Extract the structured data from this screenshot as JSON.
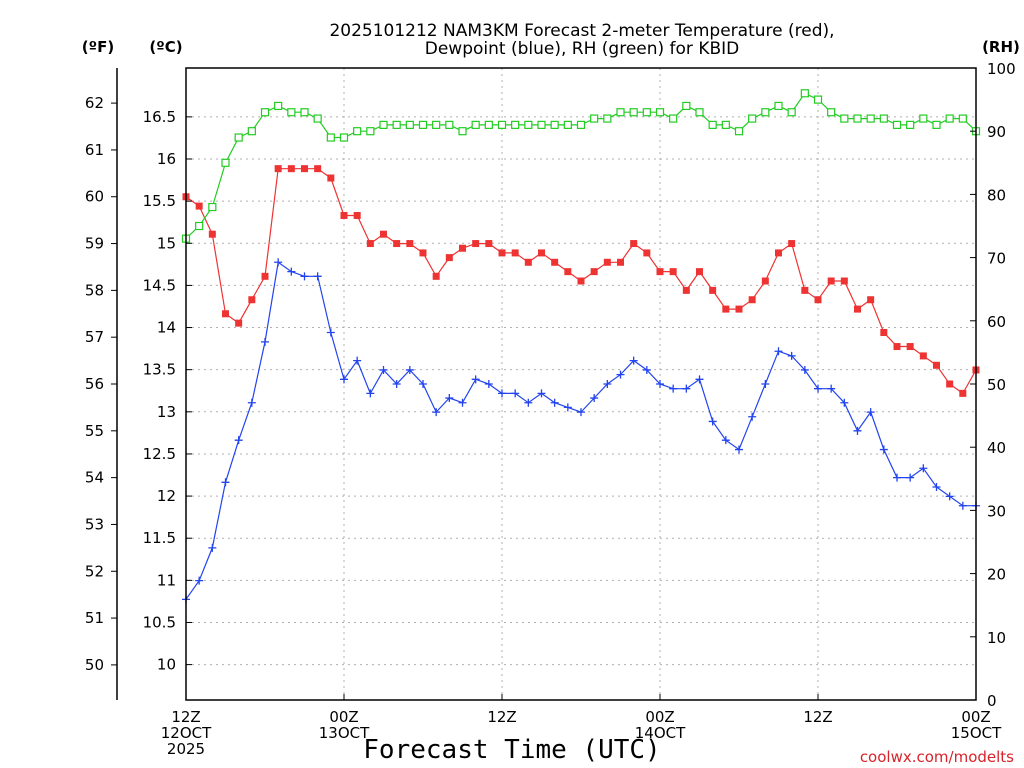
{
  "chart_data": {
    "type": "line",
    "title": [
      "2025101212 NAM3KM Forecast 2-meter Temperature (red),",
      "Dewpoint (blue), RH (green) for KBID"
    ],
    "xlabel": "Forecast Time (UTC)",
    "credit": "coolwx.com/modelts",
    "y_left_f": {
      "unit": "(ºF)",
      "lim": [
        49.25,
        62.75
      ],
      "ticks": [
        50,
        51,
        52,
        53,
        54,
        55,
        56,
        57,
        58,
        59,
        60,
        61,
        62
      ]
    },
    "y_left_c": {
      "unit": "(ºC)",
      "lim": [
        9.58,
        17.08
      ],
      "ticks": [
        "10",
        "10.5",
        "11",
        "11.5",
        "12",
        "12.5",
        "13",
        "13.5",
        "14",
        "14.5",
        "15",
        "15.5",
        "16",
        "16.5"
      ]
    },
    "y_right": {
      "unit": "(RH)",
      "lim": [
        0,
        100
      ],
      "ticks": [
        0,
        10,
        20,
        30,
        40,
        50,
        60,
        70,
        80,
        90,
        100
      ]
    },
    "x_range_hours": [
      0,
      60
    ],
    "x_ticks": [
      {
        "hour": 0,
        "lines": [
          "12Z",
          "12OCT",
          "2025"
        ]
      },
      {
        "hour": 12,
        "lines": [
          "00Z",
          "13OCT"
        ]
      },
      {
        "hour": 24,
        "lines": [
          "12Z"
        ]
      },
      {
        "hour": 36,
        "lines": [
          "00Z",
          "14OCT"
        ]
      },
      {
        "hour": 48,
        "lines": [
          "12Z"
        ]
      },
      {
        "hour": 60,
        "lines": [
          "00Z",
          "15OCT"
        ]
      }
    ],
    "series": [
      {
        "name": "Temperature (F)",
        "axis": "f",
        "color": "#ee3333",
        "marker": "filled-square",
        "x": [
          0,
          1,
          2,
          3,
          4,
          5,
          6,
          7,
          8,
          9,
          10,
          11,
          12,
          13,
          14,
          15,
          16,
          17,
          18,
          19,
          20,
          21,
          22,
          23,
          24,
          25,
          26,
          27,
          28,
          29,
          30,
          31,
          32,
          33,
          34,
          35,
          36,
          37,
          38,
          39,
          40,
          41,
          42,
          43,
          44,
          45,
          46,
          47,
          48,
          49,
          50,
          51,
          52,
          53,
          54,
          55,
          56,
          57,
          58,
          59,
          60
        ],
        "values": [
          60.0,
          59.8,
          59.2,
          57.5,
          57.3,
          57.8,
          58.3,
          60.6,
          60.6,
          60.6,
          60.6,
          60.4,
          59.6,
          59.6,
          59.0,
          59.2,
          59.0,
          59.0,
          58.8,
          58.3,
          58.7,
          58.9,
          59.0,
          59.0,
          58.8,
          58.8,
          58.6,
          58.8,
          58.6,
          58.4,
          58.2,
          58.4,
          58.6,
          58.6,
          59.0,
          58.8,
          58.4,
          58.4,
          58.0,
          58.4,
          58.0,
          57.6,
          57.6,
          57.8,
          58.2,
          58.8,
          59.0,
          58.0,
          57.8,
          58.2,
          58.2,
          57.6,
          57.8,
          57.1,
          56.8,
          56.8,
          56.6,
          56.4,
          56.0,
          55.8,
          56.3
        ]
      },
      {
        "name": "Dewpoint (F)",
        "axis": "f",
        "color": "#2244ee",
        "marker": "plus",
        "x": [
          0,
          1,
          2,
          3,
          4,
          5,
          6,
          7,
          8,
          9,
          10,
          11,
          12,
          13,
          14,
          15,
          16,
          17,
          18,
          19,
          20,
          21,
          22,
          23,
          24,
          25,
          26,
          27,
          28,
          29,
          30,
          31,
          32,
          33,
          34,
          35,
          36,
          37,
          38,
          39,
          40,
          41,
          42,
          43,
          44,
          45,
          46,
          47,
          48,
          49,
          50,
          51,
          52,
          53,
          54,
          55,
          56,
          57,
          58,
          59,
          60
        ],
        "values": [
          51.4,
          51.8,
          52.5,
          53.9,
          54.8,
          55.6,
          56.9,
          58.6,
          58.4,
          58.3,
          58.3,
          57.1,
          56.1,
          56.5,
          55.8,
          56.3,
          56.0,
          56.3,
          56.0,
          55.4,
          55.7,
          55.6,
          56.1,
          56.0,
          55.8,
          55.8,
          55.6,
          55.8,
          55.6,
          55.5,
          55.4,
          55.7,
          56.0,
          56.2,
          56.5,
          56.3,
          56.0,
          55.9,
          55.9,
          56.1,
          55.2,
          54.8,
          54.6,
          55.3,
          56.0,
          56.7,
          56.6,
          56.3,
          55.9,
          55.9,
          55.6,
          55.0,
          55.4,
          54.6,
          54.0,
          54.0,
          54.2,
          53.8,
          53.6,
          53.4,
          53.4
        ]
      },
      {
        "name": "RH (%)",
        "axis": "rh",
        "color": "#22cc22",
        "marker": "open-square",
        "x": [
          0,
          1,
          2,
          3,
          4,
          5,
          6,
          7,
          8,
          9,
          10,
          11,
          12,
          13,
          14,
          15,
          16,
          17,
          18,
          19,
          20,
          21,
          22,
          23,
          24,
          25,
          26,
          27,
          28,
          29,
          30,
          31,
          32,
          33,
          34,
          35,
          36,
          37,
          38,
          39,
          40,
          41,
          42,
          43,
          44,
          45,
          46,
          47,
          48,
          49,
          50,
          51,
          52,
          53,
          54,
          55,
          56,
          57,
          58,
          59,
          60
        ],
        "values": [
          73,
          75,
          78,
          85,
          89,
          90,
          93,
          94,
          93,
          93,
          92,
          89,
          89,
          90,
          90,
          91,
          91,
          91,
          91,
          91,
          91,
          90,
          91,
          91,
          91,
          91,
          91,
          91,
          91,
          91,
          91,
          92,
          92,
          93,
          93,
          93,
          93,
          92,
          94,
          93,
          91,
          91,
          90,
          92,
          93,
          94,
          93,
          96,
          95,
          93,
          92,
          92,
          92,
          92,
          91,
          91,
          92,
          91,
          92,
          92,
          90
        ]
      }
    ]
  }
}
